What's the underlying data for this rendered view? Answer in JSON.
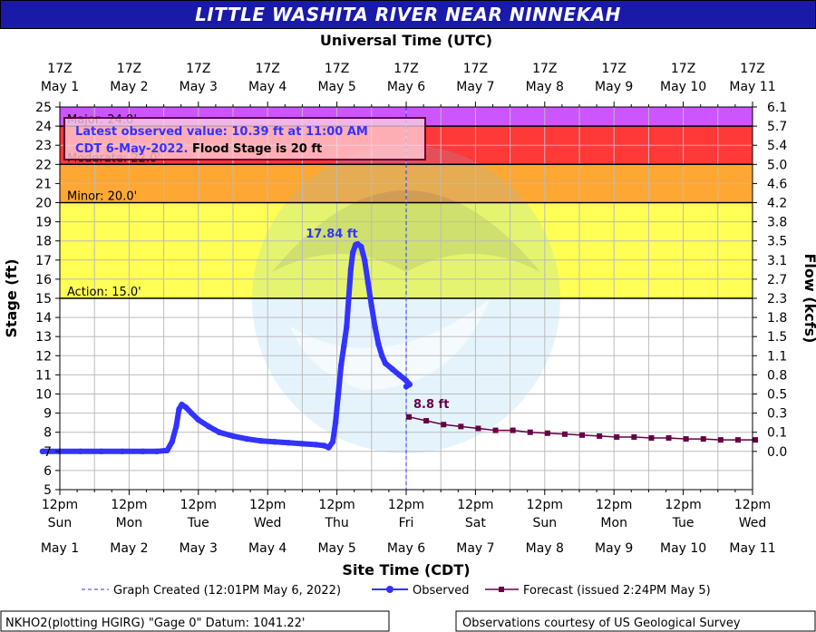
{
  "chart_data": {
    "type": "line",
    "title": "LITTLE WASHITA RIVER NEAR NINNEKAH",
    "top_axis_label": "Universal Time (UTC)",
    "xlabel": "Site Time (CDT)",
    "ylabel": "Stage (ft)",
    "y2label": "Flow (kcfs)",
    "ylim": [
      5,
      25
    ],
    "y_ticks": [
      5,
      6,
      7,
      8,
      9,
      10,
      11,
      12,
      13,
      14,
      15,
      16,
      17,
      18,
      19,
      20,
      21,
      22,
      23,
      24,
      25
    ],
    "y2_ticks": [
      {
        "stage": 25,
        "label": "6.1"
      },
      {
        "stage": 24,
        "label": "5.7"
      },
      {
        "stage": 23,
        "label": "5.4"
      },
      {
        "stage": 22,
        "label": "5.0"
      },
      {
        "stage": 21,
        "label": "4.6"
      },
      {
        "stage": 20,
        "label": "4.2"
      },
      {
        "stage": 19,
        "label": "3.8"
      },
      {
        "stage": 18,
        "label": "3.5"
      },
      {
        "stage": 17,
        "label": "3.1"
      },
      {
        "stage": 16,
        "label": "2.7"
      },
      {
        "stage": 15,
        "label": "2.3"
      },
      {
        "stage": 14,
        "label": "1.8"
      },
      {
        "stage": 13,
        "label": "1.5"
      },
      {
        "stage": 12,
        "label": "1.1"
      },
      {
        "stage": 11,
        "label": "0.8"
      },
      {
        "stage": 10,
        "label": "0.5"
      },
      {
        "stage": 9,
        "label": "0.3"
      },
      {
        "stage": 8,
        "label": "0.1"
      },
      {
        "stage": 7,
        "label": "0.0"
      }
    ],
    "x_range_days": [
      1,
      11
    ],
    "bottom_ticks": [
      {
        "time": "12pm",
        "day": "Sun",
        "date": "May 1"
      },
      {
        "time": "12pm",
        "day": "Mon",
        "date": "May 2"
      },
      {
        "time": "12pm",
        "day": "Tue",
        "date": "May 3"
      },
      {
        "time": "12pm",
        "day": "Wed",
        "date": "May 4"
      },
      {
        "time": "12pm",
        "day": "Thu",
        "date": "May 5"
      },
      {
        "time": "12pm",
        "day": "Fri",
        "date": "May 6"
      },
      {
        "time": "12pm",
        "day": "Sat",
        "date": "May 7"
      },
      {
        "time": "12pm",
        "day": "Sun",
        "date": "May 8"
      },
      {
        "time": "12pm",
        "day": "Mon",
        "date": "May 9"
      },
      {
        "time": "12pm",
        "day": "Tue",
        "date": "May 10"
      },
      {
        "time": "12pm",
        "day": "Wed",
        "date": "May 11"
      }
    ],
    "top_ticks": [
      {
        "time": "17Z",
        "date": "May 1"
      },
      {
        "time": "17Z",
        "date": "May 2"
      },
      {
        "time": "17Z",
        "date": "May 3"
      },
      {
        "time": "17Z",
        "date": "May 4"
      },
      {
        "time": "17Z",
        "date": "May 5"
      },
      {
        "time": "17Z",
        "date": "May 6"
      },
      {
        "time": "17Z",
        "date": "May 7"
      },
      {
        "time": "17Z",
        "date": "May 8"
      },
      {
        "time": "17Z",
        "date": "May 9"
      },
      {
        "time": "17Z",
        "date": "May 10"
      },
      {
        "time": "17Z",
        "date": "May 11"
      }
    ],
    "flood_categories": [
      {
        "name": "action",
        "label": "Action: 15.0'",
        "from": 15,
        "to": 20,
        "color": "#ffff55"
      },
      {
        "name": "minor",
        "label": "Minor: 20.0'",
        "from": 20,
        "to": 22,
        "color": "#ffa733"
      },
      {
        "name": "moderate",
        "label": "Moderate: 22.0'",
        "from": 22,
        "to": 24,
        "color": "#ff3838"
      },
      {
        "name": "major",
        "label": "Major: 24.0'",
        "from": 24,
        "to": 25,
        "color": "#cc55ff"
      }
    ],
    "created_line_day": 6.0,
    "series": [
      {
        "name": "Observed",
        "color": "#3333ff",
        "points": [
          [
            0.75,
            7.0
          ],
          [
            1.0,
            7.0
          ],
          [
            1.3,
            7.0
          ],
          [
            1.6,
            7.0
          ],
          [
            1.9,
            7.0
          ],
          [
            2.2,
            7.0
          ],
          [
            2.4,
            7.0
          ],
          [
            2.55,
            7.05
          ],
          [
            2.62,
            7.5
          ],
          [
            2.68,
            8.3
          ],
          [
            2.72,
            9.2
          ],
          [
            2.76,
            9.45
          ],
          [
            2.82,
            9.3
          ],
          [
            2.9,
            9.0
          ],
          [
            3.0,
            8.65
          ],
          [
            3.15,
            8.3
          ],
          [
            3.3,
            8.0
          ],
          [
            3.5,
            7.8
          ],
          [
            3.7,
            7.65
          ],
          [
            3.9,
            7.55
          ],
          [
            4.1,
            7.5
          ],
          [
            4.3,
            7.45
          ],
          [
            4.5,
            7.4
          ],
          [
            4.7,
            7.35
          ],
          [
            4.82,
            7.3
          ],
          [
            4.88,
            7.2
          ],
          [
            4.94,
            7.5
          ],
          [
            4.98,
            8.5
          ],
          [
            5.02,
            10.0
          ],
          [
            5.06,
            11.5
          ],
          [
            5.1,
            12.5
          ],
          [
            5.14,
            13.5
          ],
          [
            5.17,
            15.0
          ],
          [
            5.2,
            16.5
          ],
          [
            5.23,
            17.4
          ],
          [
            5.27,
            17.8
          ],
          [
            5.3,
            17.84
          ],
          [
            5.35,
            17.7
          ],
          [
            5.4,
            17.0
          ],
          [
            5.45,
            15.8
          ],
          [
            5.5,
            14.6
          ],
          [
            5.55,
            13.5
          ],
          [
            5.6,
            12.6
          ],
          [
            5.65,
            12.0
          ],
          [
            5.7,
            11.6
          ],
          [
            5.8,
            11.3
          ],
          [
            5.9,
            11.0
          ],
          [
            6.0,
            10.7
          ],
          [
            6.05,
            10.5
          ],
          [
            6.0,
            10.39
          ]
        ]
      },
      {
        "name": "Forecast (issued 2:24PM May 5)",
        "color": "#660044",
        "points": [
          [
            6.04,
            8.8
          ],
          [
            6.29,
            8.6
          ],
          [
            6.54,
            8.4
          ],
          [
            6.79,
            8.3
          ],
          [
            7.04,
            8.2
          ],
          [
            7.29,
            8.1
          ],
          [
            7.54,
            8.1
          ],
          [
            7.79,
            8.0
          ],
          [
            8.04,
            7.95
          ],
          [
            8.29,
            7.9
          ],
          [
            8.54,
            7.85
          ],
          [
            8.79,
            7.8
          ],
          [
            9.04,
            7.75
          ],
          [
            9.29,
            7.75
          ],
          [
            9.54,
            7.7
          ],
          [
            9.79,
            7.7
          ],
          [
            10.04,
            7.65
          ],
          [
            10.29,
            7.65
          ],
          [
            10.54,
            7.6
          ],
          [
            10.79,
            7.6
          ],
          [
            11.04,
            7.6
          ]
        ]
      }
    ],
    "annotations": {
      "peak_label": "17.84 ft",
      "forecast_start_label": "8.8 ft",
      "latest_line1": "Latest observed value: 10.39 ft at 11:00 AM",
      "latest_line2_a": "CDT 6-May-2022.",
      "latest_line2_b": " Flood Stage is 20 ft"
    },
    "legend": {
      "created": "Graph Created (12:01PM May 6, 2022)",
      "observed": "Observed",
      "forecast": "Forecast (issued 2:24PM May 5)"
    },
    "footer": {
      "datum": "NKHO2(plotting HGIRG) \"Gage 0\" Datum: 1041.22'",
      "courtesy": "Observations courtesy of US Geological Survey"
    }
  }
}
